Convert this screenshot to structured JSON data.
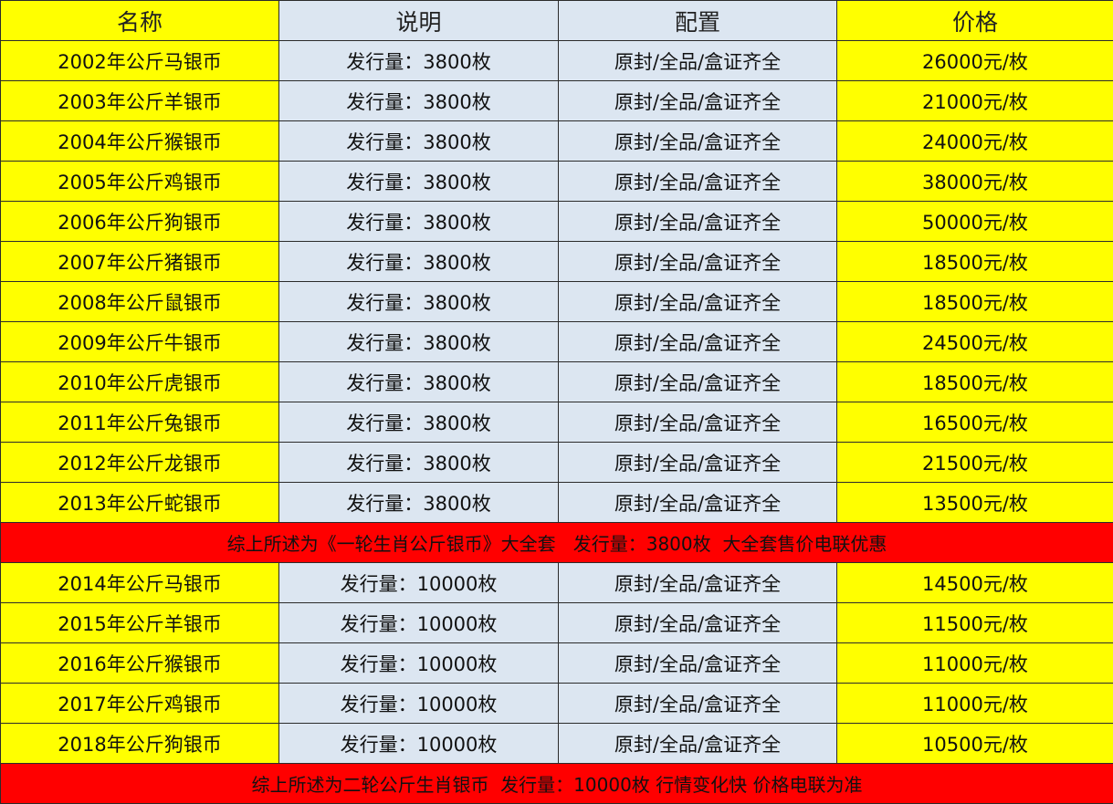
{
  "colors": {
    "name_price_bg": "#FFFF00",
    "desc_config_bg": "#DCE6F1",
    "banner_bg": "#FF0000"
  },
  "headers": [
    "名称",
    "说明",
    "配置",
    "价格"
  ],
  "group1": [
    {
      "name": "2002年公斤马银币",
      "desc": "发行量：3800枚",
      "config": "原封/全品/盒证齐全",
      "price": "26000元/枚"
    },
    {
      "name": "2003年公斤羊银币",
      "desc": "发行量：3800枚",
      "config": "原封/全品/盒证齐全",
      "price": "21000元/枚"
    },
    {
      "name": "2004年公斤猴银币",
      "desc": "发行量：3800枚",
      "config": "原封/全品/盒证齐全",
      "price": "24000元/枚"
    },
    {
      "name": "2005年公斤鸡银币",
      "desc": "发行量：3800枚",
      "config": "原封/全品/盒证齐全",
      "price": "38000元/枚"
    },
    {
      "name": "2006年公斤狗银币",
      "desc": "发行量：3800枚",
      "config": "原封/全品/盒证齐全",
      "price": "50000元/枚"
    },
    {
      "name": "2007年公斤猪银币",
      "desc": "发行量：3800枚",
      "config": "原封/全品/盒证齐全",
      "price": "18500元/枚"
    },
    {
      "name": "2008年公斤鼠银币",
      "desc": "发行量：3800枚",
      "config": "原封/全品/盒证齐全",
      "price": "18500元/枚"
    },
    {
      "name": "2009年公斤牛银币",
      "desc": "发行量：3800枚",
      "config": "原封/全品/盒证齐全",
      "price": "24500元/枚"
    },
    {
      "name": "2010年公斤虎银币",
      "desc": "发行量：3800枚",
      "config": "原封/全品/盒证齐全",
      "price": "18500元/枚"
    },
    {
      "name": "2011年公斤兔银币",
      "desc": "发行量：3800枚",
      "config": "原封/全品/盒证齐全",
      "price": "16500元/枚"
    },
    {
      "name": "2012年公斤龙银币",
      "desc": "发行量：3800枚",
      "config": "原封/全品/盒证齐全",
      "price": "21500元/枚"
    },
    {
      "name": "2013年公斤蛇银币",
      "desc": "发行量：3800枚",
      "config": "原封/全品/盒证齐全",
      "price": "13500元/枚"
    }
  ],
  "banner1": "综上所述为《一轮生肖公斤银币》大全套   发行量：3800枚  大全套售价电联优惠",
  "group2": [
    {
      "name": "2014年公斤马银币",
      "desc": "发行量：10000枚",
      "config": "原封/全品/盒证齐全",
      "price": "14500元/枚"
    },
    {
      "name": "2015年公斤羊银币",
      "desc": "发行量：10000枚",
      "config": "原封/全品/盒证齐全",
      "price": "11500元/枚"
    },
    {
      "name": "2016年公斤猴银币",
      "desc": "发行量：10000枚",
      "config": "原封/全品/盒证齐全",
      "price": "11000元/枚"
    },
    {
      "name": "2017年公斤鸡银币",
      "desc": "发行量：10000枚",
      "config": "原封/全品/盒证齐全",
      "price": "11000元/枚"
    },
    {
      "name": "2018年公斤狗银币",
      "desc": "发行量：10000枚",
      "config": "原封/全品/盒证齐全",
      "price": "10500元/枚"
    }
  ],
  "banner2": "综上所述为二轮公斤生肖银币  发行量：10000枚 行情变化快 价格电联为准"
}
